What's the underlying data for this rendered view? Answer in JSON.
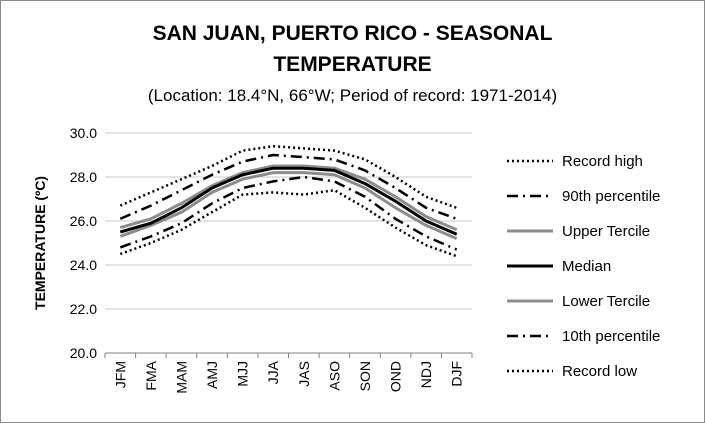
{
  "chart_data": {
    "type": "line",
    "title_line1": "SAN JUAN, PUERTO RICO - SEASONAL",
    "title_line2": "TEMPERATURE",
    "subtitle": "(Location: 18.4°N, 66°W; Period of record: 1971-2014)",
    "xlabel": "",
    "ylabel": "TEMPERATURE (ºC)",
    "ylim": [
      20.0,
      30.0
    ],
    "yticks": [
      "20.0",
      "22.0",
      "24.0",
      "26.0",
      "28.0",
      "30.0"
    ],
    "grid": true,
    "legend_position": "right",
    "categories": [
      "JFM",
      "FMA",
      "MAM",
      "AMJ",
      "MJJ",
      "JJA",
      "JAS",
      "ASO",
      "SON",
      "OND",
      "NDJ",
      "DJF"
    ],
    "series": [
      {
        "name": "Record high",
        "style": "dotted",
        "color": "#000000",
        "values": [
          26.7,
          27.3,
          27.9,
          28.5,
          29.2,
          29.4,
          29.3,
          29.2,
          28.8,
          28.0,
          27.1,
          26.6
        ]
      },
      {
        "name": "90th percentile",
        "style": "dashdot",
        "color": "#000000",
        "values": [
          26.1,
          26.7,
          27.4,
          28.1,
          28.7,
          29.0,
          28.9,
          28.8,
          28.3,
          27.5,
          26.6,
          26.1
        ]
      },
      {
        "name": "Upper Tercile",
        "style": "solid",
        "color": "#8c8c8c",
        "values": [
          25.7,
          26.1,
          26.8,
          27.6,
          28.2,
          28.5,
          28.5,
          28.4,
          27.9,
          27.1,
          26.2,
          25.6
        ]
      },
      {
        "name": "Median",
        "style": "solid",
        "color": "#000000",
        "values": [
          25.5,
          25.9,
          26.6,
          27.5,
          28.1,
          28.4,
          28.4,
          28.3,
          27.7,
          26.9,
          26.0,
          25.4
        ]
      },
      {
        "name": "Lower Tercile",
        "style": "solid",
        "color": "#8c8c8c",
        "values": [
          25.3,
          25.8,
          26.4,
          27.3,
          27.9,
          28.2,
          28.2,
          28.1,
          27.5,
          26.6,
          25.8,
          25.2
        ]
      },
      {
        "name": "10th percentile",
        "style": "dashdot",
        "color": "#000000",
        "values": [
          24.8,
          25.3,
          25.9,
          26.8,
          27.5,
          27.8,
          28.0,
          27.8,
          27.1,
          26.1,
          25.3,
          24.7
        ]
      },
      {
        "name": "Record low",
        "style": "dotted",
        "color": "#000000",
        "values": [
          24.5,
          25.0,
          25.6,
          26.4,
          27.2,
          27.3,
          27.2,
          27.4,
          26.6,
          25.7,
          24.9,
          24.4
        ]
      }
    ]
  }
}
